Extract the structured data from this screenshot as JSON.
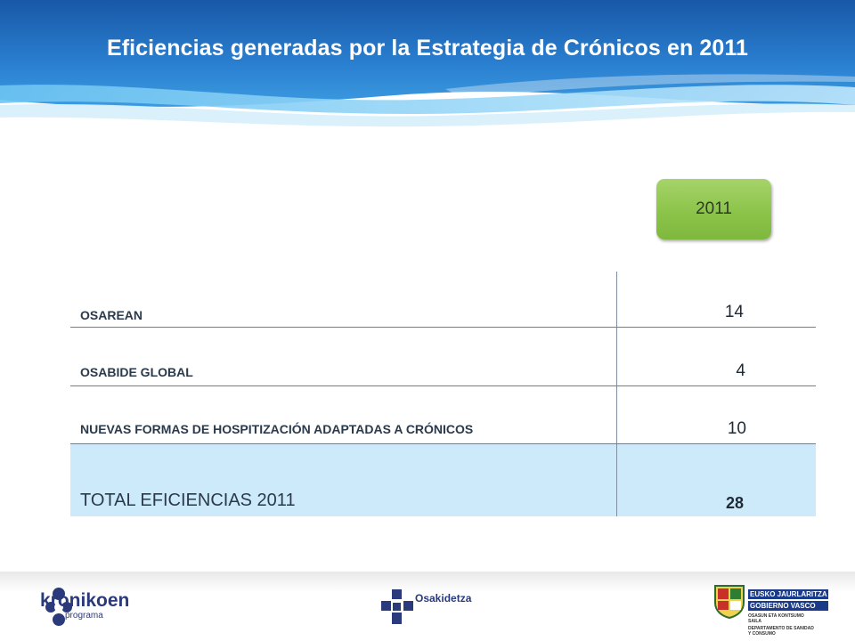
{
  "slide": {
    "title": "Eficiencias generadas por la Estrategia de Crónicos en 2011",
    "year_badge": "2011"
  },
  "table": {
    "rows": [
      {
        "label": "OSAREAN",
        "value": "14"
      },
      {
        "label": "OSABIDE GLOBAL",
        "value": "4"
      },
      {
        "label": "NUEVAS FORMAS DE HOSPITIZACIÓN ADAPTADAS A CRÓNICOS",
        "value": "10"
      }
    ],
    "total": {
      "label": "TOTAL EFICIENCIAS 2011",
      "value": "28"
    }
  },
  "footer": {
    "kronikoen": {
      "name": "kronikoen",
      "sub": "programa"
    },
    "osakidetza": {
      "name": "Osakidetza"
    },
    "gobierno": {
      "line1": "EUSKO JAURLARITZA",
      "line2": "GOBIERNO VASCO",
      "small1": "OSASUN ETA KONTSUMO",
      "small2": "SAILA",
      "small3": "DEPARTAMENTO DE SANIDAD",
      "small4": "Y CONSUMO"
    }
  },
  "colors": {
    "header_blue": "#1a67b8",
    "badge_green": "#8cc44a",
    "total_row": "#cdeafa",
    "logo_navy": "#2b3a7a"
  }
}
